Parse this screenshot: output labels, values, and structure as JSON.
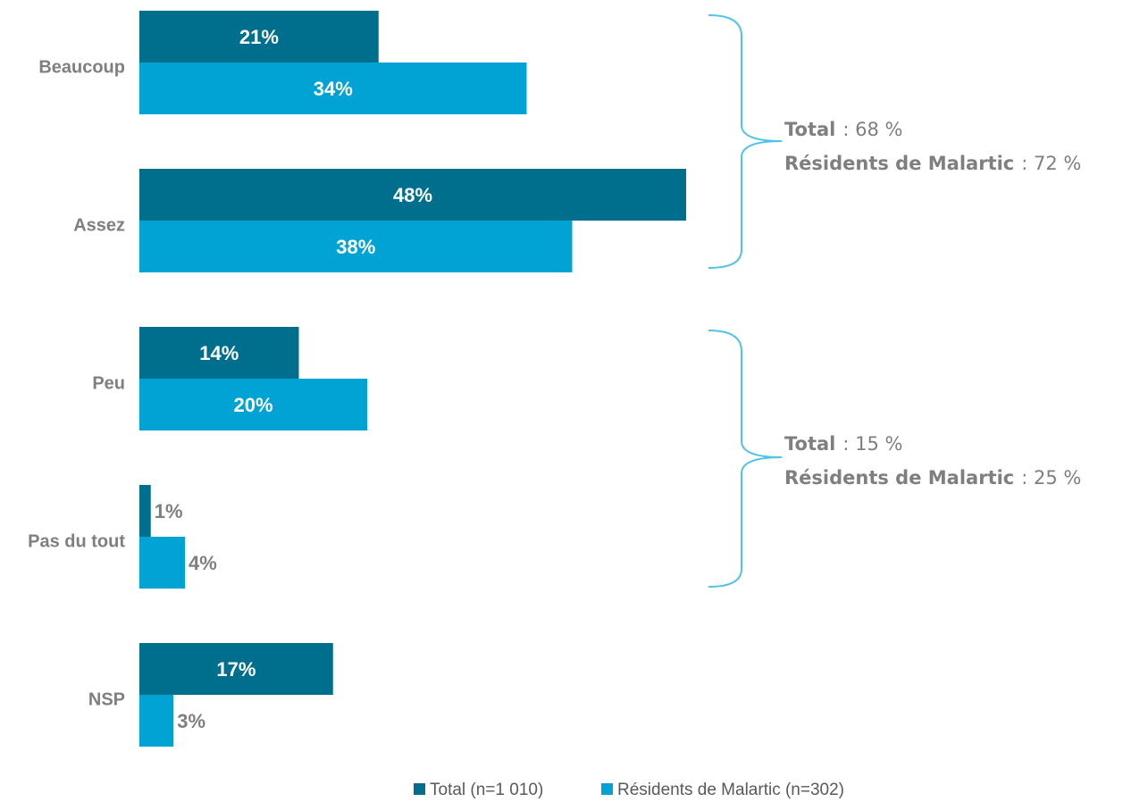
{
  "chart_data": {
    "type": "barh",
    "categories": [
      "Beaucoup",
      "Assez",
      "Peu",
      "Pas du tout",
      "NSP"
    ],
    "series": [
      {
        "name": "Total (n=1 010)",
        "color": "#006f8e",
        "values": [
          21,
          48,
          14,
          1,
          17
        ],
        "value_labels": [
          "21%",
          "48%",
          "14%",
          "1%",
          "17%"
        ]
      },
      {
        "name": "Résidents de Malartic (n=302)",
        "color": "#00a3d3",
        "values": [
          34,
          38,
          20,
          4,
          3
        ],
        "value_labels": [
          "34%",
          "38%",
          "20%",
          "4%",
          "3%"
        ]
      }
    ],
    "xlim": [
      0,
      50
    ],
    "annotations": [
      [
        {
          "label": "Total",
          "text": ": 68 %"
        },
        {
          "label": "Résidents de Malartic",
          "text": ": 72 %"
        }
      ],
      [
        {
          "label": "Total",
          "text": ": 15 %"
        },
        {
          "label": "Résidents de Malartic",
          "text": ": 25 %"
        }
      ]
    ]
  }
}
